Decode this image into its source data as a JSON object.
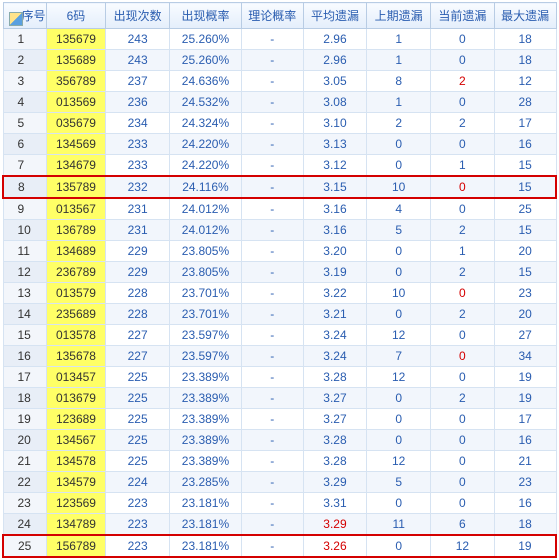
{
  "columns": [
    "序号",
    "6码",
    "出现次数",
    "出现概率",
    "理论概率",
    "平均遗漏",
    "上期遗漏",
    "当前遗漏",
    "最大遗漏"
  ],
  "colors": {
    "header_text": "#2a5db0",
    "cell_text": "#2a5db0",
    "red": "#d40000",
    "code_bg": "#ffff66",
    "row_even": "#f2f6fc",
    "row_odd": "#ffffff",
    "border": "#d6e3f2",
    "highlight_border": "#d40000"
  },
  "highlights": [
    8,
    25
  ],
  "rows": [
    {
      "seq": 1,
      "code": "135679",
      "count": 243,
      "prob": "25.260%",
      "theo": "-",
      "avg": "2.96",
      "prev": 1,
      "cur": 0,
      "max": 18
    },
    {
      "seq": 2,
      "code": "135689",
      "count": 243,
      "prob": "25.260%",
      "theo": "-",
      "avg": "2.96",
      "prev": 1,
      "cur": 0,
      "max": 18
    },
    {
      "seq": 3,
      "code": "356789",
      "count": 237,
      "prob": "24.636%",
      "theo": "-",
      "avg": "3.05",
      "prev": 8,
      "cur": 2,
      "cur_red": true,
      "max": 12
    },
    {
      "seq": 4,
      "code": "013569",
      "count": 236,
      "prob": "24.532%",
      "theo": "-",
      "avg": "3.08",
      "prev": 1,
      "cur": 0,
      "max": 28
    },
    {
      "seq": 5,
      "code": "035679",
      "count": 234,
      "prob": "24.324%",
      "theo": "-",
      "avg": "3.10",
      "prev": 2,
      "cur": 2,
      "max": 17
    },
    {
      "seq": 6,
      "code": "134569",
      "count": 233,
      "prob": "24.220%",
      "theo": "-",
      "avg": "3.13",
      "prev": 0,
      "cur": 0,
      "max": 16
    },
    {
      "seq": 7,
      "code": "134679",
      "count": 233,
      "prob": "24.220%",
      "theo": "-",
      "avg": "3.12",
      "prev": 0,
      "cur": 1,
      "max": 15
    },
    {
      "seq": 8,
      "code": "135789",
      "count": 232,
      "prob": "24.116%",
      "theo": "-",
      "avg": "3.15",
      "prev": 10,
      "cur": 0,
      "cur_red": true,
      "max": 15
    },
    {
      "seq": 9,
      "code": "013567",
      "count": 231,
      "prob": "24.012%",
      "theo": "-",
      "avg": "3.16",
      "prev": 4,
      "cur": 0,
      "max": 25
    },
    {
      "seq": 10,
      "code": "136789",
      "count": 231,
      "prob": "24.012%",
      "theo": "-",
      "avg": "3.16",
      "prev": 5,
      "cur": 2,
      "max": 15
    },
    {
      "seq": 11,
      "code": "134689",
      "count": 229,
      "prob": "23.805%",
      "theo": "-",
      "avg": "3.20",
      "prev": 0,
      "cur": 1,
      "max": 20
    },
    {
      "seq": 12,
      "code": "236789",
      "count": 229,
      "prob": "23.805%",
      "theo": "-",
      "avg": "3.19",
      "prev": 0,
      "cur": 2,
      "max": 15
    },
    {
      "seq": 13,
      "code": "013579",
      "count": 228,
      "prob": "23.701%",
      "theo": "-",
      "avg": "3.22",
      "prev": 10,
      "cur": 0,
      "cur_red": true,
      "max": 23
    },
    {
      "seq": 14,
      "code": "235689",
      "count": 228,
      "prob": "23.701%",
      "theo": "-",
      "avg": "3.21",
      "prev": 0,
      "cur": 2,
      "max": 20
    },
    {
      "seq": 15,
      "code": "013578",
      "count": 227,
      "prob": "23.597%",
      "theo": "-",
      "avg": "3.24",
      "prev": 12,
      "cur": 0,
      "max": 27
    },
    {
      "seq": 16,
      "code": "135678",
      "count": 227,
      "prob": "23.597%",
      "theo": "-",
      "avg": "3.24",
      "prev": 7,
      "cur": 0,
      "cur_red": true,
      "max": 34
    },
    {
      "seq": 17,
      "code": "013457",
      "count": 225,
      "prob": "23.389%",
      "theo": "-",
      "avg": "3.28",
      "prev": 12,
      "cur": 0,
      "max": 19
    },
    {
      "seq": 18,
      "code": "013679",
      "count": 225,
      "prob": "23.389%",
      "theo": "-",
      "avg": "3.27",
      "prev": 0,
      "cur": 2,
      "max": 19
    },
    {
      "seq": 19,
      "code": "123689",
      "count": 225,
      "prob": "23.389%",
      "theo": "-",
      "avg": "3.27",
      "prev": 0,
      "cur": 0,
      "max": 17
    },
    {
      "seq": 20,
      "code": "134567",
      "count": 225,
      "prob": "23.389%",
      "theo": "-",
      "avg": "3.28",
      "prev": 0,
      "cur": 0,
      "max": 16
    },
    {
      "seq": 21,
      "code": "134578",
      "count": 225,
      "prob": "23.389%",
      "theo": "-",
      "avg": "3.28",
      "prev": 12,
      "cur": 0,
      "max": 21
    },
    {
      "seq": 22,
      "code": "134579",
      "count": 224,
      "prob": "23.285%",
      "theo": "-",
      "avg": "3.29",
      "prev": 5,
      "cur": 0,
      "max": 23
    },
    {
      "seq": 23,
      "code": "123569",
      "count": 223,
      "prob": "23.181%",
      "theo": "-",
      "avg": "3.31",
      "prev": 0,
      "cur": 0,
      "max": 16
    },
    {
      "seq": 24,
      "code": "134789",
      "count": 223,
      "prob": "23.181%",
      "theo": "-",
      "avg": "3.29",
      "avg_red": true,
      "prev": 11,
      "cur": 6,
      "max": 18
    },
    {
      "seq": 25,
      "code": "156789",
      "count": 223,
      "prob": "23.181%",
      "theo": "-",
      "avg": "3.26",
      "avg_red": true,
      "prev": 0,
      "cur": 12,
      "max": 19
    }
  ]
}
